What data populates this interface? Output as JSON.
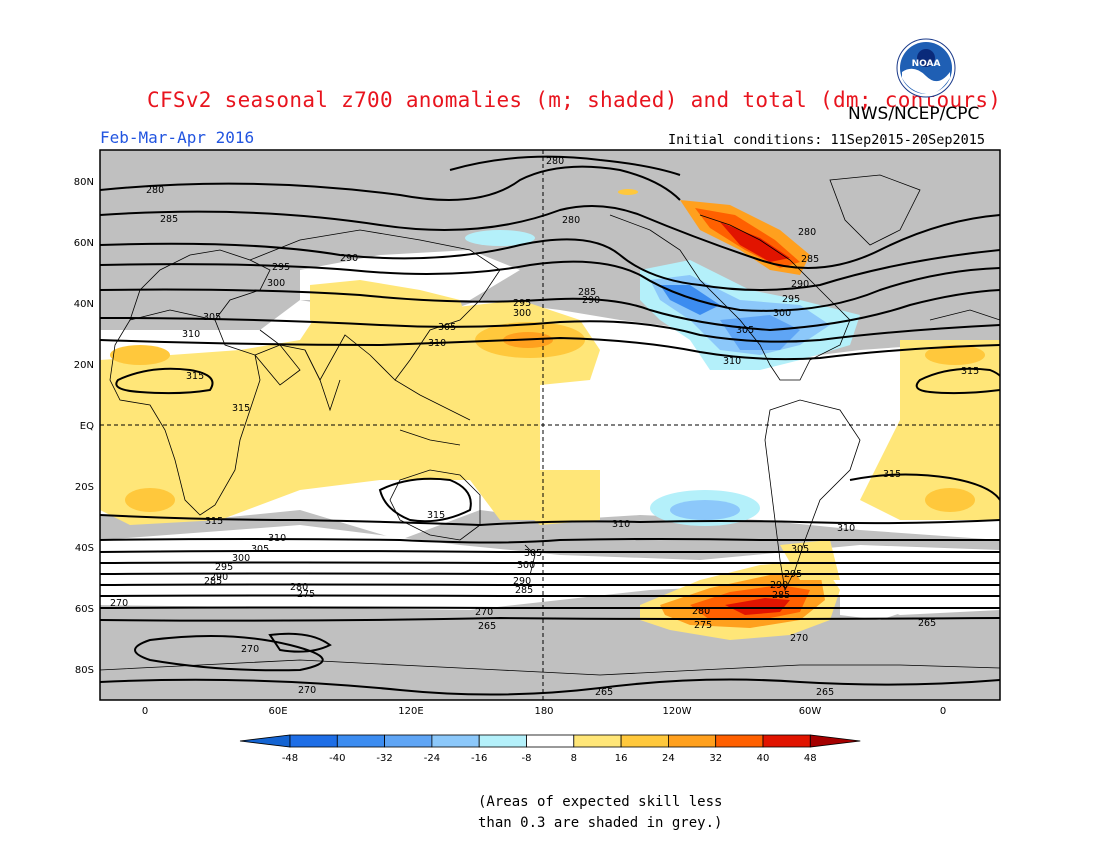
{
  "title": "CFSv2 seasonal z700 anomalies (m; shaded) and total (dm; contours)",
  "agency": "NWS/NCEP/CPC",
  "logo_text": "NOAA",
  "season": "Feb-Mar-Apr 2016",
  "initial_conditions": "Initial conditions: 11Sep2015-20Sep2015",
  "lat_labels": [
    "80N",
    "60N",
    "40N",
    "20N",
    "EQ",
    "20S",
    "40S",
    "60S",
    "80S"
  ],
  "lon_labels": [
    "0",
    "60E",
    "120E",
    "180",
    "120W",
    "60W",
    "0"
  ],
  "colorbar": {
    "ticks": [
      "-48",
      "-40",
      "-32",
      "-24",
      "-16",
      "-8",
      "8",
      "16",
      "24",
      "32",
      "40",
      "48"
    ],
    "colors": [
      "#1464d2",
      "#1e6ee6",
      "#3c8cf0",
      "#5fa5f5",
      "#8cc8fa",
      "#b4f0fa",
      "#ffffff",
      "#ffe678",
      "#ffc83c",
      "#ffa01e",
      "#ff6000",
      "#e11400",
      "#a50000"
    ]
  },
  "contour_labels": {
    "c280": "280",
    "c285": "285",
    "c290": "290",
    "c295": "295",
    "c300": "300",
    "c305": "305",
    "c310": "310",
    "c315": "315",
    "c270": "270",
    "c275": "275",
    "c265": "265"
  },
  "note_line1": "(Areas of expected skill less",
  "note_line2": "than 0.3 are shaded in grey.)"
}
